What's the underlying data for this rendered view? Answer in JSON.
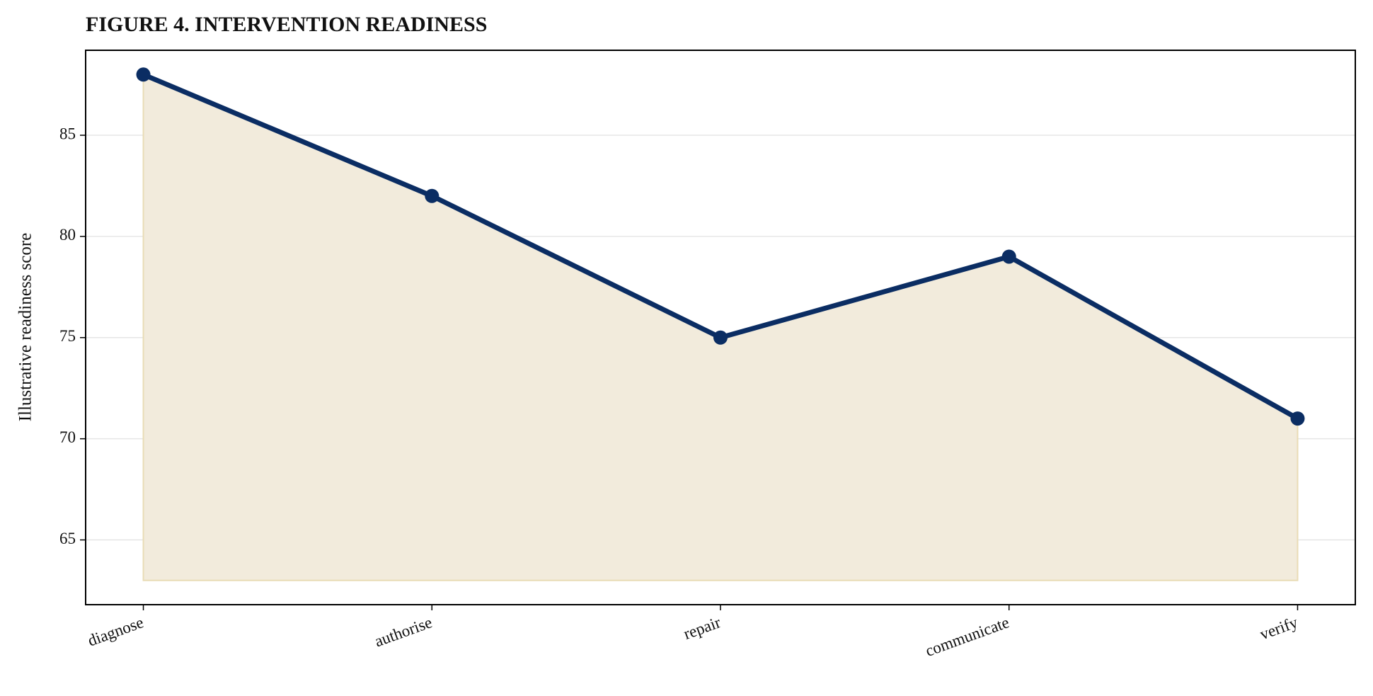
{
  "chart_data": {
    "type": "area-line",
    "title": "FIGURE 4. INTERVENTION READINESS",
    "y_label": "Illustrative readiness score",
    "categories": [
      "diagnose",
      "authorise",
      "repair",
      "communicate",
      "verify"
    ],
    "values": [
      88,
      82,
      75,
      79,
      71
    ],
    "color": "#0b2d63",
    "fill_color": "#f2ebdc",
    "area_baseline": 63,
    "ylim": [
      61.8,
      89.2
    ],
    "yticks": [
      65,
      70,
      75,
      80,
      85
    ],
    "grid": true
  }
}
